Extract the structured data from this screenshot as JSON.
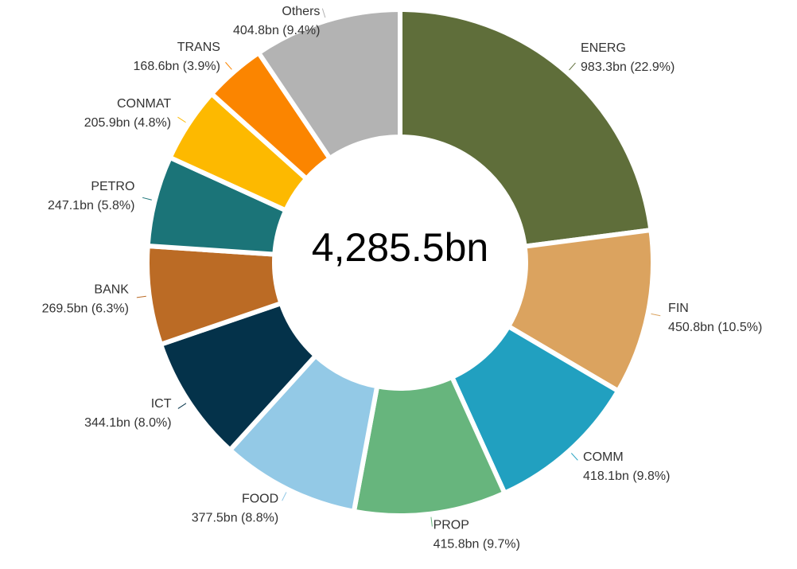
{
  "chart_data": {
    "type": "pie",
    "center_label": "4,285.5bn",
    "categories": [
      "ENERG",
      "FIN",
      "COMM",
      "PROP",
      "FOOD",
      "ICT",
      "BANK",
      "PETRO",
      "CONMAT",
      "TRANS",
      "Others"
    ],
    "values": [
      983.3,
      450.8,
      418.1,
      415.8,
      377.5,
      344.1,
      269.5,
      247.1,
      205.9,
      168.6,
      404.8
    ],
    "value_labels": [
      "983.3bn (22.9%)",
      "450.8bn (10.5%)",
      "418.1bn (9.8%)",
      "415.8bn (9.7%)",
      "377.5bn (8.8%)",
      "344.1bn (8.0%)",
      "269.5bn (6.3%)",
      "247.1bn (5.8%)",
      "205.9bn (4.8%)",
      "168.6bn (3.9%)",
      "404.8bn (9.4%)"
    ],
    "colors": [
      "#5f6e3a",
      "#dba35f",
      "#21a0c0",
      "#67b57d",
      "#93c9e6",
      "#04324a",
      "#bb6b25",
      "#1b7478",
      "#fdb900",
      "#fb8500",
      "#b3b3b3"
    ]
  }
}
